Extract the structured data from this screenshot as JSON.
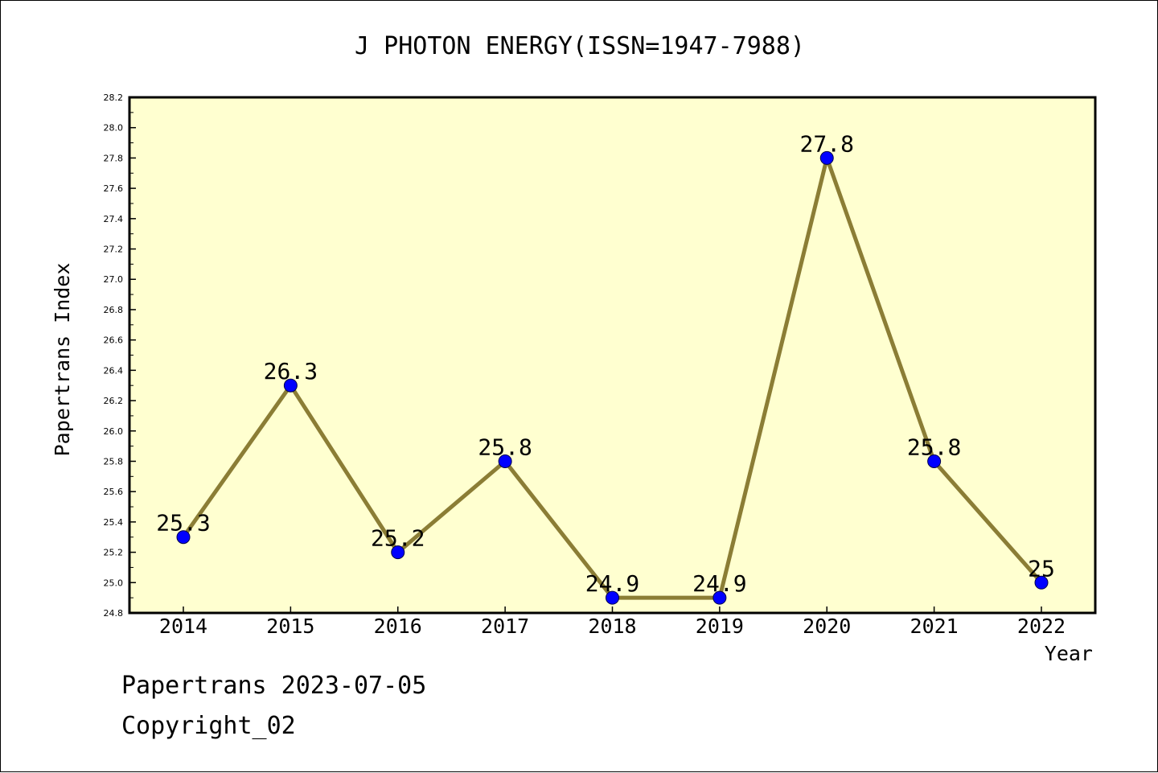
{
  "chart_data": {
    "type": "line",
    "title": "J PHOTON ENERGY(ISSN=1947-7988)",
    "xlabel": "Year",
    "ylabel": "Papertrans Index",
    "categories": [
      "2014",
      "2015",
      "2016",
      "2017",
      "2018",
      "2019",
      "2020",
      "2021",
      "2022"
    ],
    "series": [
      {
        "values": [
          25.3,
          26.3,
          25.2,
          25.8,
          24.9,
          24.9,
          27.8,
          25.8,
          25.0
        ],
        "data_labels": [
          "25.3",
          "26.3",
          "25.2",
          "25.8",
          "24.9",
          "24.9",
          "27.8",
          "25.8",
          "25"
        ]
      }
    ],
    "ylim": [
      24.8,
      28.2
    ],
    "yticks": [
      "24.8",
      "25.0",
      "25.2",
      "25.4",
      "25.6",
      "25.8",
      "26.0",
      "26.2",
      "26.4",
      "26.6",
      "26.8",
      "27.0",
      "27.2",
      "27.4",
      "27.6",
      "27.8",
      "28.0",
      "28.2"
    ],
    "grid": false,
    "colors": {
      "plot_background": "#FFFFD0",
      "line": "#8B7D35",
      "marker": "#0000FF"
    }
  },
  "footer": {
    "line1": "Papertrans 2023-07-05",
    "line2": "Copyright_02"
  }
}
